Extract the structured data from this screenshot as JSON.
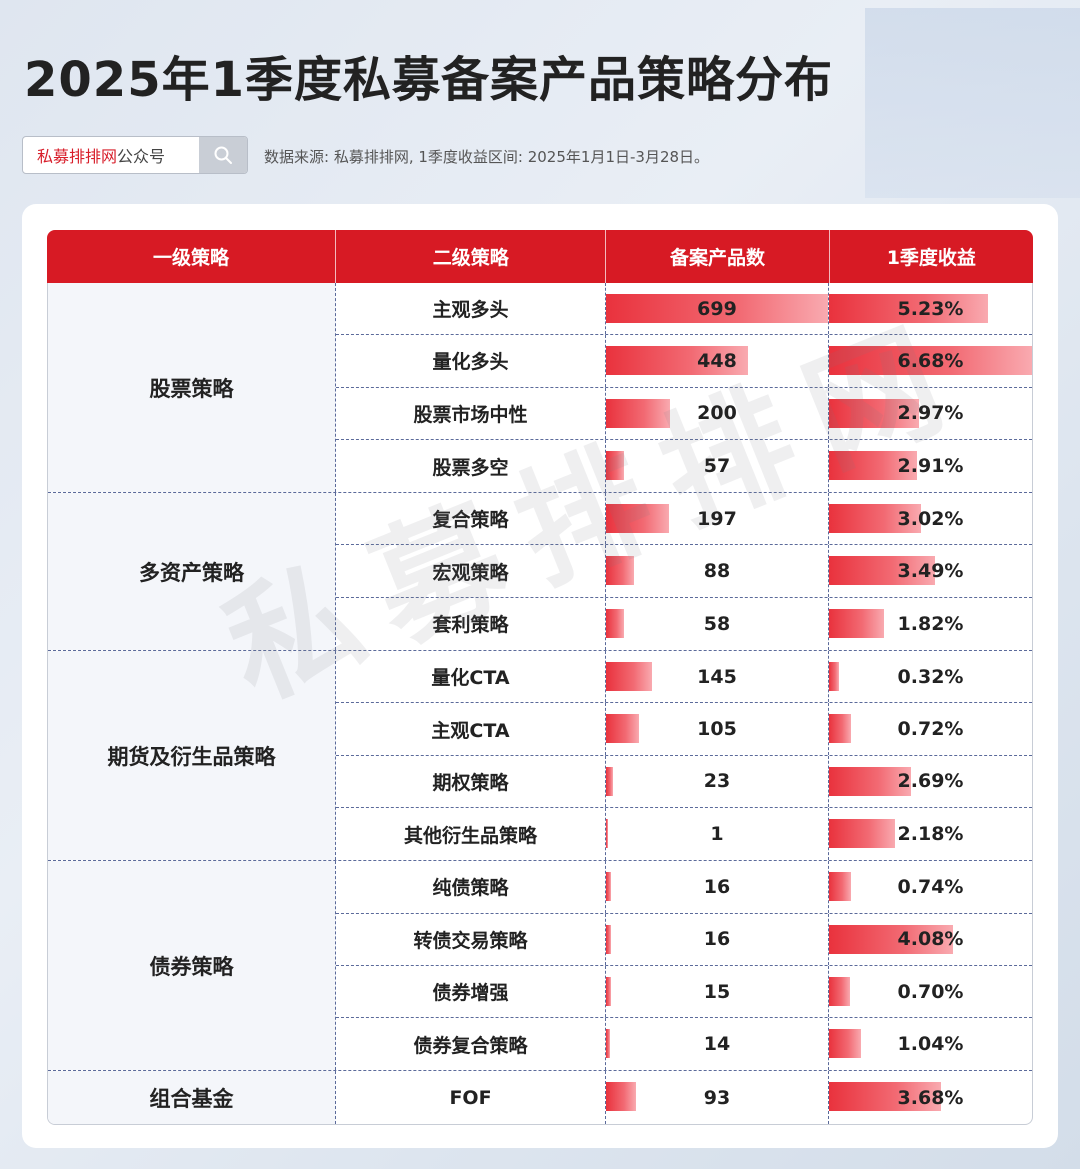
{
  "title": "2025年1季度私募备案产品策略分布",
  "search": {
    "brand": "私募排排网",
    "suffix": "公众号"
  },
  "source": "数据来源: 私募排排网, 1季度收益区间: 2025年1月1日-3月28日。",
  "watermark": "私募排排网",
  "chart_data": {
    "type": "table",
    "columns": [
      "一级策略",
      "二级策略",
      "备案产品数",
      "1季度收益"
    ],
    "groups": [
      {
        "name": "股票策略",
        "rows": [
          {
            "name": "主观多头",
            "count": 699,
            "return": "5.23%",
            "return_value": 5.23
          },
          {
            "name": "量化多头",
            "count": 448,
            "return": "6.68%",
            "return_value": 6.68
          },
          {
            "name": "股票市场中性",
            "count": 200,
            "return": "2.97%",
            "return_value": 2.97
          },
          {
            "name": "股票多空",
            "count": 57,
            "return": "2.91%",
            "return_value": 2.91
          }
        ]
      },
      {
        "name": "多资产策略",
        "rows": [
          {
            "name": "复合策略",
            "count": 197,
            "return": "3.02%",
            "return_value": 3.02
          },
          {
            "name": "宏观策略",
            "count": 88,
            "return": "3.49%",
            "return_value": 3.49
          },
          {
            "name": "套利策略",
            "count": 58,
            "return": "1.82%",
            "return_value": 1.82
          }
        ]
      },
      {
        "name": "期货及衍生品策略",
        "rows": [
          {
            "name": "量化CTA",
            "count": 145,
            "return": "0.32%",
            "return_value": 0.32
          },
          {
            "name": "主观CTA",
            "count": 105,
            "return": "0.72%",
            "return_value": 0.72
          },
          {
            "name": "期权策略",
            "count": 23,
            "return": "2.69%",
            "return_value": 2.69
          },
          {
            "name": "其他衍生品策略",
            "count": 1,
            "return": "2.18%",
            "return_value": 2.18
          }
        ]
      },
      {
        "name": "债券策略",
        "rows": [
          {
            "name": "纯债策略",
            "count": 16,
            "return": "0.74%",
            "return_value": 0.74
          },
          {
            "name": "转债交易策略",
            "count": 16,
            "return": "4.08%",
            "return_value": 4.08
          },
          {
            "name": "债券增强",
            "count": 15,
            "return": "0.70%",
            "return_value": 0.7
          },
          {
            "name": "债券复合策略",
            "count": 14,
            "return": "1.04%",
            "return_value": 1.04
          }
        ]
      },
      {
        "name": "组合基金",
        "rows": [
          {
            "name": "FOF",
            "count": 93,
            "return": "3.68%",
            "return_value": 3.68
          }
        ]
      }
    ],
    "count_max": 699,
    "return_max": 6.68,
    "bar_color": "#e9323d",
    "header_color": "#d71a24"
  }
}
